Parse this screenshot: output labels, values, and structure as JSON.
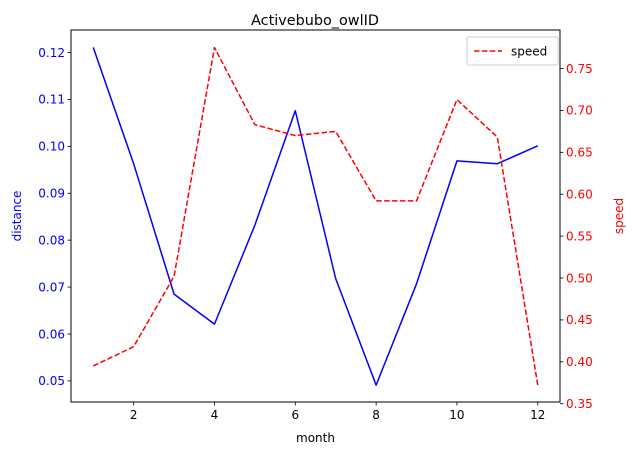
{
  "chart_data": {
    "type": "line",
    "title": "Activebubo_owlID",
    "xlabel": "month",
    "x": [
      1,
      2,
      3,
      4,
      5,
      6,
      7,
      8,
      9,
      10,
      11,
      12
    ],
    "xlim": [
      0.45,
      12.55
    ],
    "xticks": [
      2,
      4,
      6,
      8,
      10,
      12
    ],
    "series": [
      {
        "axis": "left",
        "color": "#0000ff",
        "style": "solid",
        "values": [
          0.1211,
          0.0963,
          0.0685,
          0.0621,
          0.0832,
          0.1076,
          0.0718,
          0.0491,
          0.0707,
          0.0969,
          0.0963,
          0.1001
        ]
      },
      {
        "name": "speed",
        "axis": "right",
        "color": "#ff0000",
        "style": "dashed",
        "values": [
          0.395,
          0.418,
          0.502,
          0.775,
          0.683,
          0.67,
          0.675,
          0.592,
          0.592,
          0.713,
          0.668,
          0.372
        ]
      }
    ],
    "y_left": {
      "label": "distance",
      "color": "#0000ff",
      "lim": [
        0.0455,
        0.1248
      ],
      "ticks": [
        0.05,
        0.06,
        0.07,
        0.08,
        0.09,
        0.1,
        0.11,
        0.12
      ],
      "tick_labels": [
        "0.05",
        "0.06",
        "0.07",
        "0.08",
        "0.09",
        "0.10",
        "0.11",
        "0.12"
      ]
    },
    "y_right": {
      "label": "speed",
      "color": "#ff0000",
      "lim": [
        0.352,
        0.796
      ],
      "ticks": [
        0.35,
        0.4,
        0.45,
        0.5,
        0.55,
        0.6,
        0.65,
        0.7,
        0.75
      ],
      "tick_labels": [
        "0.35",
        "0.40",
        "0.45",
        "0.50",
        "0.55",
        "0.60",
        "0.65",
        "0.70",
        "0.75"
      ]
    },
    "legend": {
      "placement": "top-right",
      "entries": [
        "speed"
      ]
    },
    "grid": false
  }
}
